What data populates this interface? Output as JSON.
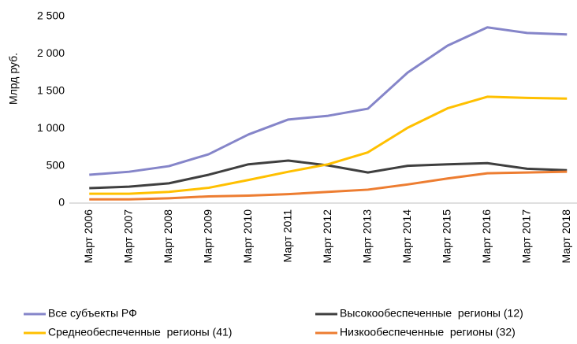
{
  "chart_data": {
    "type": "line",
    "y_label": "Млрд руб.",
    "categories": [
      "Март 2006",
      "Март 2007",
      "Март 2008",
      "Март 2009",
      "Март 2010",
      "Март 2011",
      "Март 2012",
      "Март 2013",
      "Март 2014",
      "Март 2015",
      "Март 2016",
      "Март 2017",
      "Март 2018"
    ],
    "series": [
      {
        "name": "Все субъекты РФ",
        "color": "#8585c9",
        "values": [
          380,
          420,
          495,
          655,
          920,
          1120,
          1170,
          1265,
          1750,
          2110,
          2355,
          2280,
          2260
        ]
      },
      {
        "name": "Высокообеспеченные  регионы (12)",
        "color": "#3f3f3f",
        "values": [
          200,
          220,
          265,
          380,
          520,
          570,
          505,
          410,
          500,
          520,
          535,
          460,
          440
        ]
      },
      {
        "name": "Среднеобеспеченные  регионы (41)",
        "color": "#ffc000",
        "values": [
          125,
          125,
          150,
          205,
          310,
          420,
          520,
          680,
          1010,
          1270,
          1425,
          1410,
          1400
        ]
      },
      {
        "name": "Низкообеспеченные  регионы (32)",
        "color": "#ed7d31",
        "values": [
          50,
          50,
          65,
          90,
          100,
          120,
          150,
          180,
          250,
          330,
          400,
          410,
          420
        ]
      }
    ],
    "ylim": [
      0,
      2500
    ],
    "yticks": [
      0,
      500,
      {
        "value": 1000,
        "label": "1 000"
      },
      {
        "value": 1500,
        "label": "1 500"
      },
      {
        "value": 2000,
        "label": "2 000"
      },
      {
        "value": 2500,
        "label": "2 500"
      }
    ],
    "grid": false
  }
}
